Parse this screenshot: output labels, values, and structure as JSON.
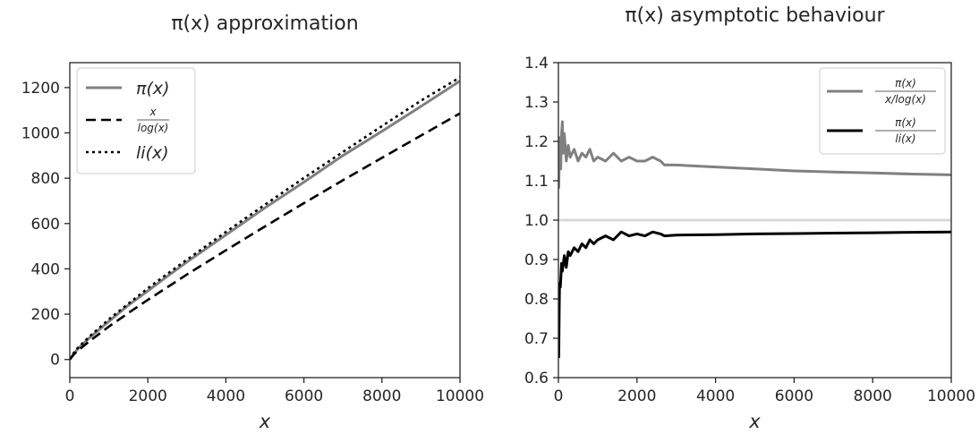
{
  "chart_data": [
    {
      "type": "line",
      "title": "π(x) approximation",
      "xlabel": "x",
      "ylabel": "",
      "xlim": [
        0,
        10000
      ],
      "ylim": [
        -80,
        1310
      ],
      "xticks": [
        0,
        2000,
        4000,
        6000,
        8000,
        10000
      ],
      "xtick_labels": [
        "0",
        "2000",
        "4000",
        "6000",
        "8000",
        "10000"
      ],
      "yticks": [
        0,
        200,
        400,
        600,
        800,
        1000,
        1200
      ],
      "ytick_labels": [
        "0",
        "200",
        "400",
        "600",
        "800",
        "1000",
        "1200"
      ],
      "grid": false,
      "legend_position": "top-left",
      "series": [
        {
          "name": "π(x)",
          "color": "#808080",
          "style": "solid",
          "x": [
            0,
            100,
            200,
            500,
            1000,
            1500,
            2000,
            2500,
            3000,
            4000,
            5000,
            6000,
            7000,
            8000,
            9000,
            10000
          ],
          "y": [
            0,
            25,
            46,
            95,
            168,
            239,
            303,
            367,
            430,
            550,
            669,
            783,
            900,
            1007,
            1117,
            1229
          ]
        },
        {
          "name": "x / log(x)",
          "name_num": "x",
          "name_den": "log(x)",
          "color": "#000000",
          "style": "dashed",
          "x": [
            0,
            100,
            200,
            500,
            1000,
            1500,
            2000,
            2500,
            3000,
            4000,
            5000,
            6000,
            7000,
            8000,
            9000,
            10000
          ],
          "y": [
            0,
            22,
            38,
            80,
            145,
            205,
            263,
            319,
            375,
            482,
            587,
            690,
            791,
            890,
            988,
            1086
          ]
        },
        {
          "name": "li(x)",
          "color": "#000000",
          "style": "dotted",
          "x": [
            0,
            100,
            200,
            500,
            1000,
            1500,
            2000,
            2500,
            3000,
            4000,
            5000,
            6000,
            7000,
            8000,
            9000,
            10000
          ],
          "y": [
            0,
            29,
            50,
            101,
            177,
            246,
            314,
            378,
            440,
            563,
            683,
            801,
            916,
            1030,
            1142,
            1245
          ]
        }
      ]
    },
    {
      "type": "line",
      "title": "π(x) asymptotic behaviour",
      "xlabel": "x",
      "ylabel": "",
      "xlim": [
        0,
        10000
      ],
      "ylim": [
        0.6,
        1.4
      ],
      "xticks": [
        0,
        2000,
        4000,
        6000,
        8000,
        10000
      ],
      "xtick_labels": [
        "0",
        "2000",
        "4000",
        "6000",
        "8000",
        "10000"
      ],
      "yticks": [
        0.6,
        0.7,
        0.8,
        0.9,
        1.0,
        1.1,
        1.2,
        1.3,
        1.4
      ],
      "ytick_labels": [
        "0.6",
        "0.7",
        "0.8",
        "0.9",
        "1.0",
        "1.1",
        "1.2",
        "1.3",
        "1.4"
      ],
      "grid": false,
      "legend_position": "top-right",
      "reference_line": {
        "y": 1.0,
        "color": "#d9d9d9"
      },
      "series": [
        {
          "name": "π(x) / (x/log(x))",
          "name_num": "π(x)",
          "name_den": "x/log(x)",
          "color": "#808080",
          "style": "solid",
          "x": [
            10,
            20,
            40,
            60,
            80,
            100,
            120,
            150,
            200,
            250,
            300,
            400,
            500,
            600,
            700,
            800,
            900,
            1000,
            1200,
            1400,
            1600,
            1800,
            2000,
            2200,
            2400,
            2600,
            2700,
            3000,
            4000,
            5000,
            6000,
            7000,
            8000,
            9000,
            10000
          ],
          "y": [
            1.08,
            1.15,
            1.21,
            1.13,
            1.22,
            1.25,
            1.17,
            1.22,
            1.15,
            1.19,
            1.16,
            1.18,
            1.15,
            1.17,
            1.16,
            1.18,
            1.15,
            1.16,
            1.15,
            1.17,
            1.15,
            1.16,
            1.15,
            1.15,
            1.16,
            1.15,
            1.14,
            1.14,
            1.135,
            1.13,
            1.125,
            1.122,
            1.12,
            1.117,
            1.115
          ]
        },
        {
          "name": "π(x) / li(x)",
          "name_num": "π(x)",
          "name_den": "li(x)",
          "color": "#000000",
          "style": "solid",
          "x": [
            10,
            20,
            30,
            50,
            80,
            100,
            150,
            200,
            250,
            300,
            400,
            500,
            600,
            700,
            800,
            900,
            1000,
            1200,
            1400,
            1600,
            1800,
            2000,
            2200,
            2400,
            2600,
            2700,
            3000,
            4000,
            5000,
            6000,
            7000,
            8000,
            9000,
            10000
          ],
          "y": [
            0.65,
            0.77,
            0.84,
            0.83,
            0.89,
            0.87,
            0.91,
            0.88,
            0.92,
            0.91,
            0.93,
            0.92,
            0.94,
            0.93,
            0.95,
            0.94,
            0.95,
            0.96,
            0.95,
            0.97,
            0.96,
            0.965,
            0.96,
            0.97,
            0.965,
            0.96,
            0.962,
            0.963,
            0.965,
            0.966,
            0.967,
            0.968,
            0.969,
            0.97
          ]
        }
      ]
    }
  ]
}
